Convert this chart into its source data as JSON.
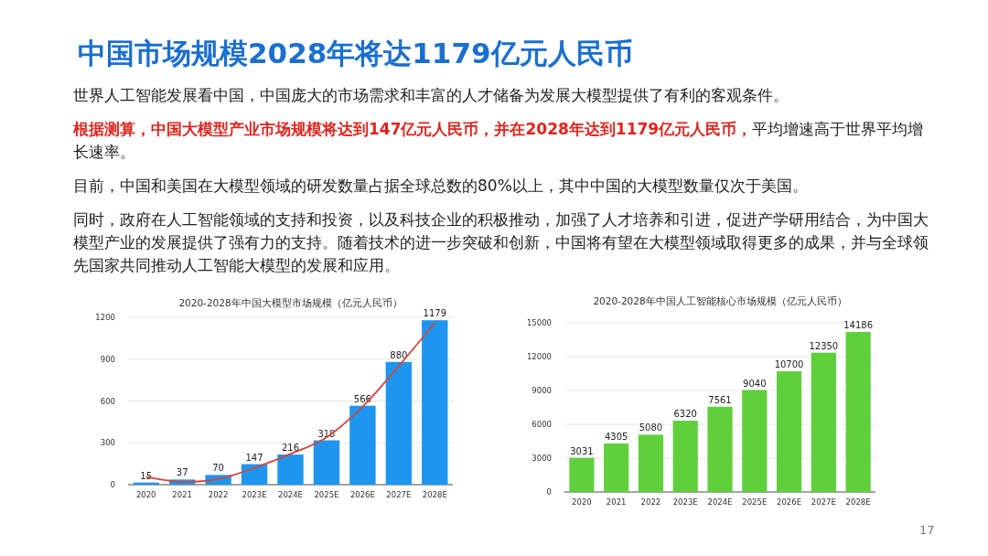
{
  "chart_data": [
    {
      "type": "bar",
      "title": "2020-2028年中国大模型市场规模（亿元人民币）",
      "categories": [
        "2020",
        "2021",
        "2022",
        "2023E",
        "2024E",
        "2025E",
        "2026E",
        "2027E",
        "2028E"
      ],
      "series": [
        {
          "color": "#1e96f0",
          "values": [
            15,
            37,
            70,
            147,
            216,
            318,
            566,
            880,
            1179
          ],
          "value_labels": [
            "15",
            "37",
            "70",
            "147",
            "216",
            "318",
            "566",
            "880",
            "1179"
          ]
        },
        {
          "type": "line",
          "color": "#d2453e",
          "values": [
            55,
            20,
            40,
            120,
            220,
            340,
            560,
            850,
            1160
          ]
        }
      ],
      "ylim": [
        0,
        1200
      ],
      "yticks": [
        0,
        300,
        600,
        900,
        1200
      ],
      "grid": "y",
      "annotations": [
        "中国市场规模2028年将达1179亿元人民币",
        "世界人工智能发展看中国，中国庞大的市场需求和丰富的人才储备为发展大模型提供了有利的客观条件。",
        "根据测算，中国大模型产业市场规模将达到147亿元人民币，并在2028年达到1179亿元人民币，",
        "平均增速高于世界平均增长速率。",
        "目前，中国和美国在大模型领域的研发数量占据全球总数的80%以上，其中中国的大模型数量仅次于美国。",
        "同时，政府在人工智能领域的支持和投资，以及科技企业的积极推动，加强了人才培养和引进，促进产学研用结合，为中国大模型产业的发展提供了强有力的支持。随着技术的进一步突破和创新，中国将有望在大模型领域取得更多的成果，并与全球领先国家共同推动人工智能大模型的发展和应用。"
      ]
    },
    {
      "type": "bar",
      "title": "2020-2028年中国人工智能核心市场规模（亿元人民币）",
      "categories": [
        "2020",
        "2021",
        "2022",
        "2023E",
        "2024E",
        "2025E",
        "2026E",
        "2027E",
        "2028E"
      ],
      "values": [
        3031,
        4305,
        5080,
        6320,
        7561,
        9040,
        10700,
        12350,
        14186
      ],
      "color": "#5fd03c",
      "data_labels": true,
      "ylim": [
        0,
        15000
      ],
      "yticks": [
        0,
        3000,
        6000,
        9000,
        12000,
        15000
      ],
      "grid": "y",
      "annotations": [
        "17"
      ]
    }
  ]
}
